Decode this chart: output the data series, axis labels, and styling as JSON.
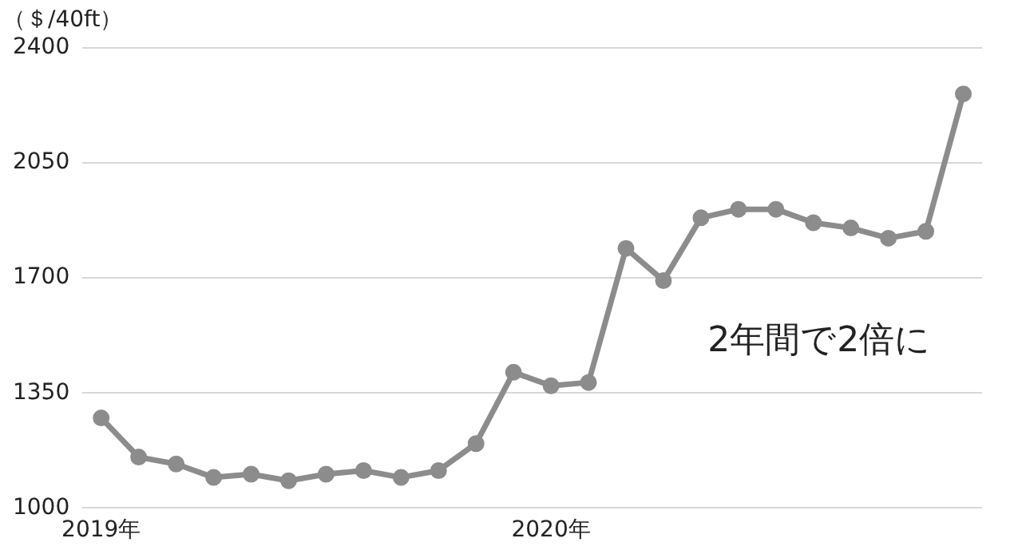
{
  "chart_data": {
    "type": "line",
    "ylabel": "（＄/40ft）",
    "annotations": [
      "2年間で2倍に"
    ],
    "categories": [
      "2019年",
      null,
      null,
      null,
      null,
      null,
      null,
      null,
      null,
      null,
      null,
      null,
      "2020年",
      null,
      null,
      null,
      null,
      null,
      null,
      null,
      null,
      null,
      null,
      null
    ],
    "series": [
      {
        "color": "#8c8c8c",
        "values": [
          1274,
          1155,
          1134,
          1093,
          1103,
          1083,
          1103,
          1114,
          1093,
          1114,
          1196,
          1413,
          1372,
          1382,
          1790,
          1692,
          1883,
          1909,
          1909,
          1868,
          1852,
          1821,
          1842,
          2260
        ]
      }
    ],
    "ylim": [
      1000,
      2400
    ],
    "yticks": [
      1000,
      1350,
      1700,
      2050,
      2400
    ],
    "grid": "y",
    "legend": false,
    "marker": "circle",
    "line_style": "solid"
  }
}
